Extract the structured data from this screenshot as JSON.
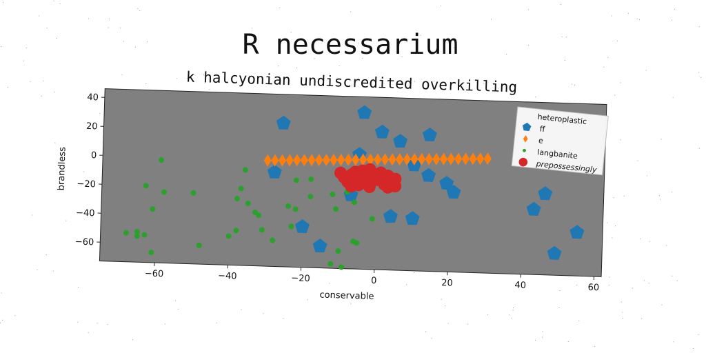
{
  "chart_data": {
    "type": "scatter",
    "title": "R necessarium",
    "subtitle": "k halcyonian undiscredited overkilling",
    "xlabel": "conservable",
    "ylabel": "brandless",
    "xlim": [
      -75,
      62
    ],
    "ylim": [
      -73,
      46
    ],
    "xticks": [
      -60,
      -40,
      -20,
      0,
      20,
      40,
      60
    ],
    "yticks": [
      40,
      20,
      0,
      -20,
      -40,
      -60
    ],
    "background_color": "#808080",
    "grid": false,
    "legend": {
      "title": "heteroplastic",
      "placement": "upper right"
    },
    "series": [
      {
        "name": "ff",
        "marker": "pentagon",
        "color": "#1f77b4",
        "points": [
          [
            -26,
            26
          ],
          [
            -4,
            35
          ],
          [
            1,
            22
          ],
          [
            6,
            16
          ],
          [
            14,
            21
          ],
          [
            -5,
            6
          ],
          [
            -28,
            -8
          ],
          [
            -7,
            -22
          ],
          [
            4,
            -36
          ],
          [
            10,
            -37
          ],
          [
            14,
            -7
          ],
          [
            19,
            -12
          ],
          [
            21,
            -18
          ],
          [
            -20,
            -45
          ],
          [
            -15,
            -58
          ],
          [
            43,
            -28
          ],
          [
            46,
            -17
          ],
          [
            55,
            -43
          ],
          [
            49,
            -58
          ],
          [
            10,
            0
          ]
        ]
      },
      {
        "name": "e",
        "marker": "diamond",
        "color": "#ff7f0e",
        "points": [
          [
            -30,
            0
          ],
          [
            -28,
            0.2
          ],
          [
            -26,
            0.4
          ],
          [
            -24,
            0.6
          ],
          [
            -22,
            0.8
          ],
          [
            -20,
            1
          ],
          [
            -18,
            1.2
          ],
          [
            -16,
            1.4
          ],
          [
            -14,
            1.6
          ],
          [
            -12,
            1.8
          ],
          [
            -10,
            2
          ],
          [
            -8,
            2.2
          ],
          [
            -6,
            2.4
          ],
          [
            -4,
            2.6
          ],
          [
            -2,
            2.8
          ],
          [
            0,
            3
          ],
          [
            2,
            3.2
          ],
          [
            4,
            3.4
          ],
          [
            6,
            3.6
          ],
          [
            8,
            3.8
          ],
          [
            10,
            4
          ],
          [
            12,
            4.2
          ],
          [
            14,
            4.4
          ],
          [
            16,
            4.6
          ],
          [
            18,
            4.8
          ],
          [
            20,
            5
          ],
          [
            22,
            5.2
          ],
          [
            24,
            5.4
          ],
          [
            26,
            5.6
          ],
          [
            28,
            5.8
          ],
          [
            30,
            6
          ]
        ]
      },
      {
        "name": "langbanite",
        "marker": "circle",
        "color": "#2ca02c",
        "points": [
          [
            -59,
            -2
          ],
          [
            -63,
            -20
          ],
          [
            -58,
            -24
          ],
          [
            -50,
            -24
          ],
          [
            -61,
            -36
          ],
          [
            -65,
            -52
          ],
          [
            -65,
            -55
          ],
          [
            -63,
            -54
          ],
          [
            -68,
            -53
          ],
          [
            -61,
            -66
          ],
          [
            -48,
            -60
          ],
          [
            -36,
            -7
          ],
          [
            -37,
            -20
          ],
          [
            -38,
            -27
          ],
          [
            -35,
            -30
          ],
          [
            -33,
            -36
          ],
          [
            -32,
            -38
          ],
          [
            -38,
            -49
          ],
          [
            -40,
            -53
          ],
          [
            -31,
            -48
          ],
          [
            -28,
            -55
          ],
          [
            -22,
            -13
          ],
          [
            -24,
            -31
          ],
          [
            -22,
            -33
          ],
          [
            -23,
            -45
          ],
          [
            -18,
            -12
          ],
          [
            -18,
            -24
          ],
          [
            -12,
            -22
          ],
          [
            -11,
            -32
          ],
          [
            -8,
            -20
          ],
          [
            -6,
            -27
          ],
          [
            -6,
            -54
          ],
          [
            -5,
            -55
          ],
          [
            -12,
            -70
          ],
          [
            -10,
            -61
          ],
          [
            -9,
            -72
          ],
          [
            -1,
            -38
          ]
        ]
      },
      {
        "name": "prepossessingly",
        "marker": "circle-large",
        "color": "#d62728",
        "points": [
          [
            -10,
            -7
          ],
          [
            -9,
            -10
          ],
          [
            -8,
            -13
          ],
          [
            -7,
            -8
          ],
          [
            -6,
            -6
          ],
          [
            -6,
            -11
          ],
          [
            -5,
            -15
          ],
          [
            -4,
            -5
          ],
          [
            -3,
            -9
          ],
          [
            -3,
            -13
          ],
          [
            -2,
            -16
          ],
          [
            -1,
            -7
          ],
          [
            0,
            -11
          ],
          [
            1,
            -6
          ],
          [
            2,
            -14
          ],
          [
            3,
            -8
          ],
          [
            4,
            -12
          ],
          [
            5,
            -10
          ],
          [
            5,
            -15
          ],
          [
            -7,
            -16
          ],
          [
            -2,
            -4
          ],
          [
            3,
            -16
          ]
        ]
      }
    ]
  }
}
